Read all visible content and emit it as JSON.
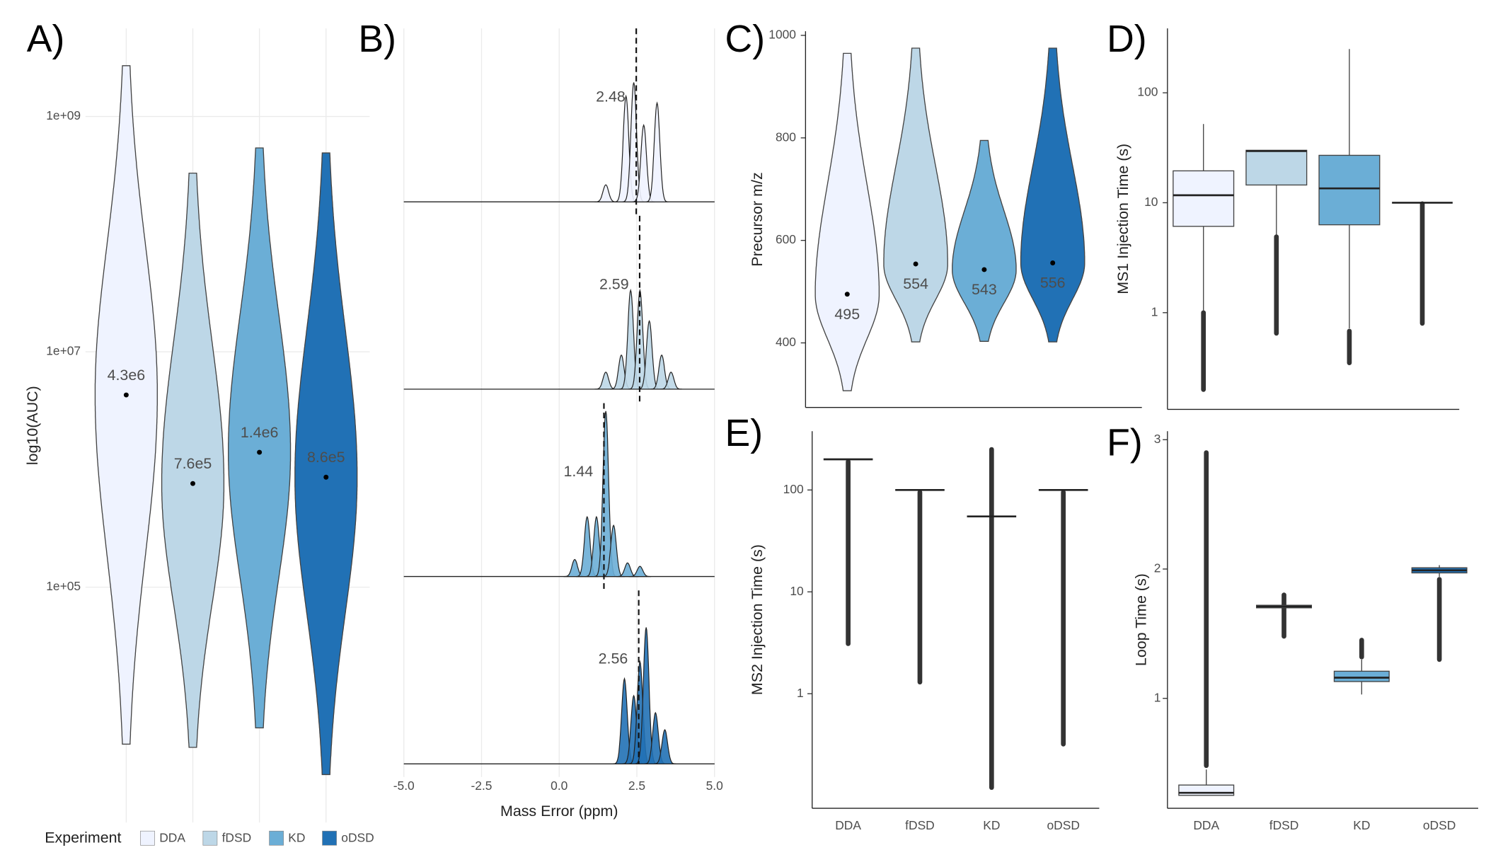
{
  "chart_data": [
    {
      "type": "violin",
      "panel_label": "A)",
      "ylabel": "log10(AUC)",
      "log_y": true,
      "grid": true,
      "ylim": [
        1000,
        5600000000
      ],
      "yticks": [
        {
          "value": 100000,
          "label": "1e+05"
        },
        {
          "value": 10000000,
          "label": "1e+07"
        },
        {
          "value": 1000000000,
          "label": "1e+09"
        }
      ],
      "categories": [
        "DDA",
        "fDSD",
        "KD",
        "oDSD"
      ],
      "colors": [
        "#eff3ff",
        "#bdd7e7",
        "#6baed6",
        "#2171b5"
      ],
      "min": [
        4500,
        4300,
        6200,
        2500
      ],
      "max": [
        2700000000,
        330000000,
        540000000,
        490000000
      ],
      "values": [
        4300000,
        760000,
        1400000,
        860000
      ],
      "value_labels": [
        "4.3e6",
        "7.6e5",
        "1.4e6",
        "8.6e5"
      ],
      "legend_title": "Experiment"
    },
    {
      "type": "ridgeline",
      "panel_label": "B)",
      "xlabel": "Mass Error (ppm)",
      "grid": true,
      "xlim": [
        -5.49,
        5.49
      ],
      "xticks": [
        {
          "value": -5,
          "label": "-5.0"
        },
        {
          "value": -2.5,
          "label": "-2.5"
        },
        {
          "value": 0,
          "label": "0.0"
        },
        {
          "value": 2.5,
          "label": "2.5"
        },
        {
          "value": 5,
          "label": "5.0"
        }
      ],
      "series": [
        {
          "color": "#eff3ff",
          "x": [
            1.5,
            2.15,
            2.4,
            2.72,
            3.15
          ],
          "values": [
            0.1,
            0.62,
            0.7,
            0.45,
            0.58
          ],
          "mean": 2.48
        },
        {
          "color": "#bdd7e7",
          "x": [
            1.5,
            2.0,
            2.3,
            2.6,
            2.9,
            3.3,
            3.6
          ],
          "values": [
            0.1,
            0.2,
            0.58,
            0.58,
            0.4,
            0.2,
            0.1
          ],
          "mean": 2.59
        },
        {
          "color": "#6baed6",
          "x": [
            0.5,
            0.9,
            1.2,
            1.5,
            1.75,
            2.2,
            2.6
          ],
          "values": [
            0.1,
            0.35,
            0.35,
            0.97,
            0.3,
            0.08,
            0.06
          ],
          "mean": 1.44
        },
        {
          "color": "#2171b5",
          "x": [
            2.1,
            2.4,
            2.6,
            2.8,
            3.1,
            3.4
          ],
          "values": [
            0.5,
            0.4,
            0.6,
            0.8,
            0.3,
            0.2
          ],
          "mean": 2.56
        }
      ]
    },
    {
      "type": "violin",
      "panel_label": "C)",
      "ylabel": "Precursor m/z",
      "ylim": [
        274,
        1008
      ],
      "yticks": [
        400,
        600,
        800,
        1000
      ],
      "colors": [
        "#eff3ff",
        "#bdd7e7",
        "#6baed6",
        "#2171b5"
      ],
      "min": [
        304,
        400,
        400,
        400
      ],
      "max": [
        965,
        975,
        795,
        975
      ],
      "values": [
        495,
        554,
        543,
        556
      ]
    },
    {
      "type": "box",
      "panel_label": "D)",
      "ylabel": "MS1 Injection Time (s)",
      "log_y": true,
      "ylim": [
        0.132,
        385
      ],
      "yticks": [
        1,
        10,
        100
      ],
      "colors": [
        "#eff3ff",
        "#bdd7e7",
        "#6baed6",
        "#2171b5"
      ],
      "q1": [
        6.1,
        14.5,
        6.3,
        10
      ],
      "median": [
        11.7,
        29.5,
        13.5,
        10
      ],
      "q3": [
        19.5,
        30,
        27,
        10
      ],
      "whisker_low": [
        1.05,
        5,
        0.72,
        10
      ],
      "whisker_high": [
        52,
        30,
        250,
        10
      ],
      "outliers_low": [
        0.2,
        0.65,
        0.35,
        0.8
      ],
      "outliers_high": [
        1,
        4.9,
        0.68,
        9.8
      ]
    },
    {
      "type": "box",
      "panel_label": "E)",
      "ylabel": "MS2 Injection Time (s)",
      "log_y": true,
      "ylim": [
        0.075,
        378
      ],
      "yticks": [
        1,
        10,
        100
      ],
      "categories": [
        "DDA",
        "fDSD",
        "KD",
        "oDSD"
      ],
      "colors": [
        "#eff3ff",
        "#bdd7e7",
        "#6baed6",
        "#2171b5"
      ],
      "q1": [
        200,
        100,
        55,
        100
      ],
      "median": [
        200,
        100,
        55,
        100
      ],
      "q3": [
        200,
        100,
        55,
        100
      ],
      "whisker_low": [
        200,
        100,
        55,
        100
      ],
      "whisker_high": [
        200,
        100,
        55,
        100
      ],
      "outliers_low": [
        3.1,
        1.3,
        0.12,
        0.32
      ],
      "outliers_high": [
        190,
        95,
        250,
        95
      ]
    },
    {
      "type": "box",
      "panel_label": "F)",
      "ylabel": "Loop Time (s)",
      "ylim": [
        0.15,
        3.066
      ],
      "yticks": [
        1,
        2,
        3
      ],
      "categories": [
        "DDA",
        "fDSD",
        "KD",
        "oDSD"
      ],
      "colors": [
        "#eff3ff",
        "#bdd7e7",
        "#6baed6",
        "#2171b5"
      ],
      "q1": [
        0.25,
        1.7,
        1.13,
        1.97
      ],
      "median": [
        0.27,
        1.71,
        1.16,
        1.99
      ],
      "q3": [
        0.33,
        1.72,
        1.21,
        2.01
      ],
      "whisker_low": [
        0.25,
        1.69,
        1.03,
        1.94
      ],
      "whisker_high": [
        0.45,
        1.73,
        1.3,
        2.03
      ],
      "outliers_low": [
        0.48,
        1.48,
        1.32,
        1.3
      ],
      "outliers_high": [
        2.9,
        1.8,
        1.45,
        1.92
      ]
    }
  ]
}
